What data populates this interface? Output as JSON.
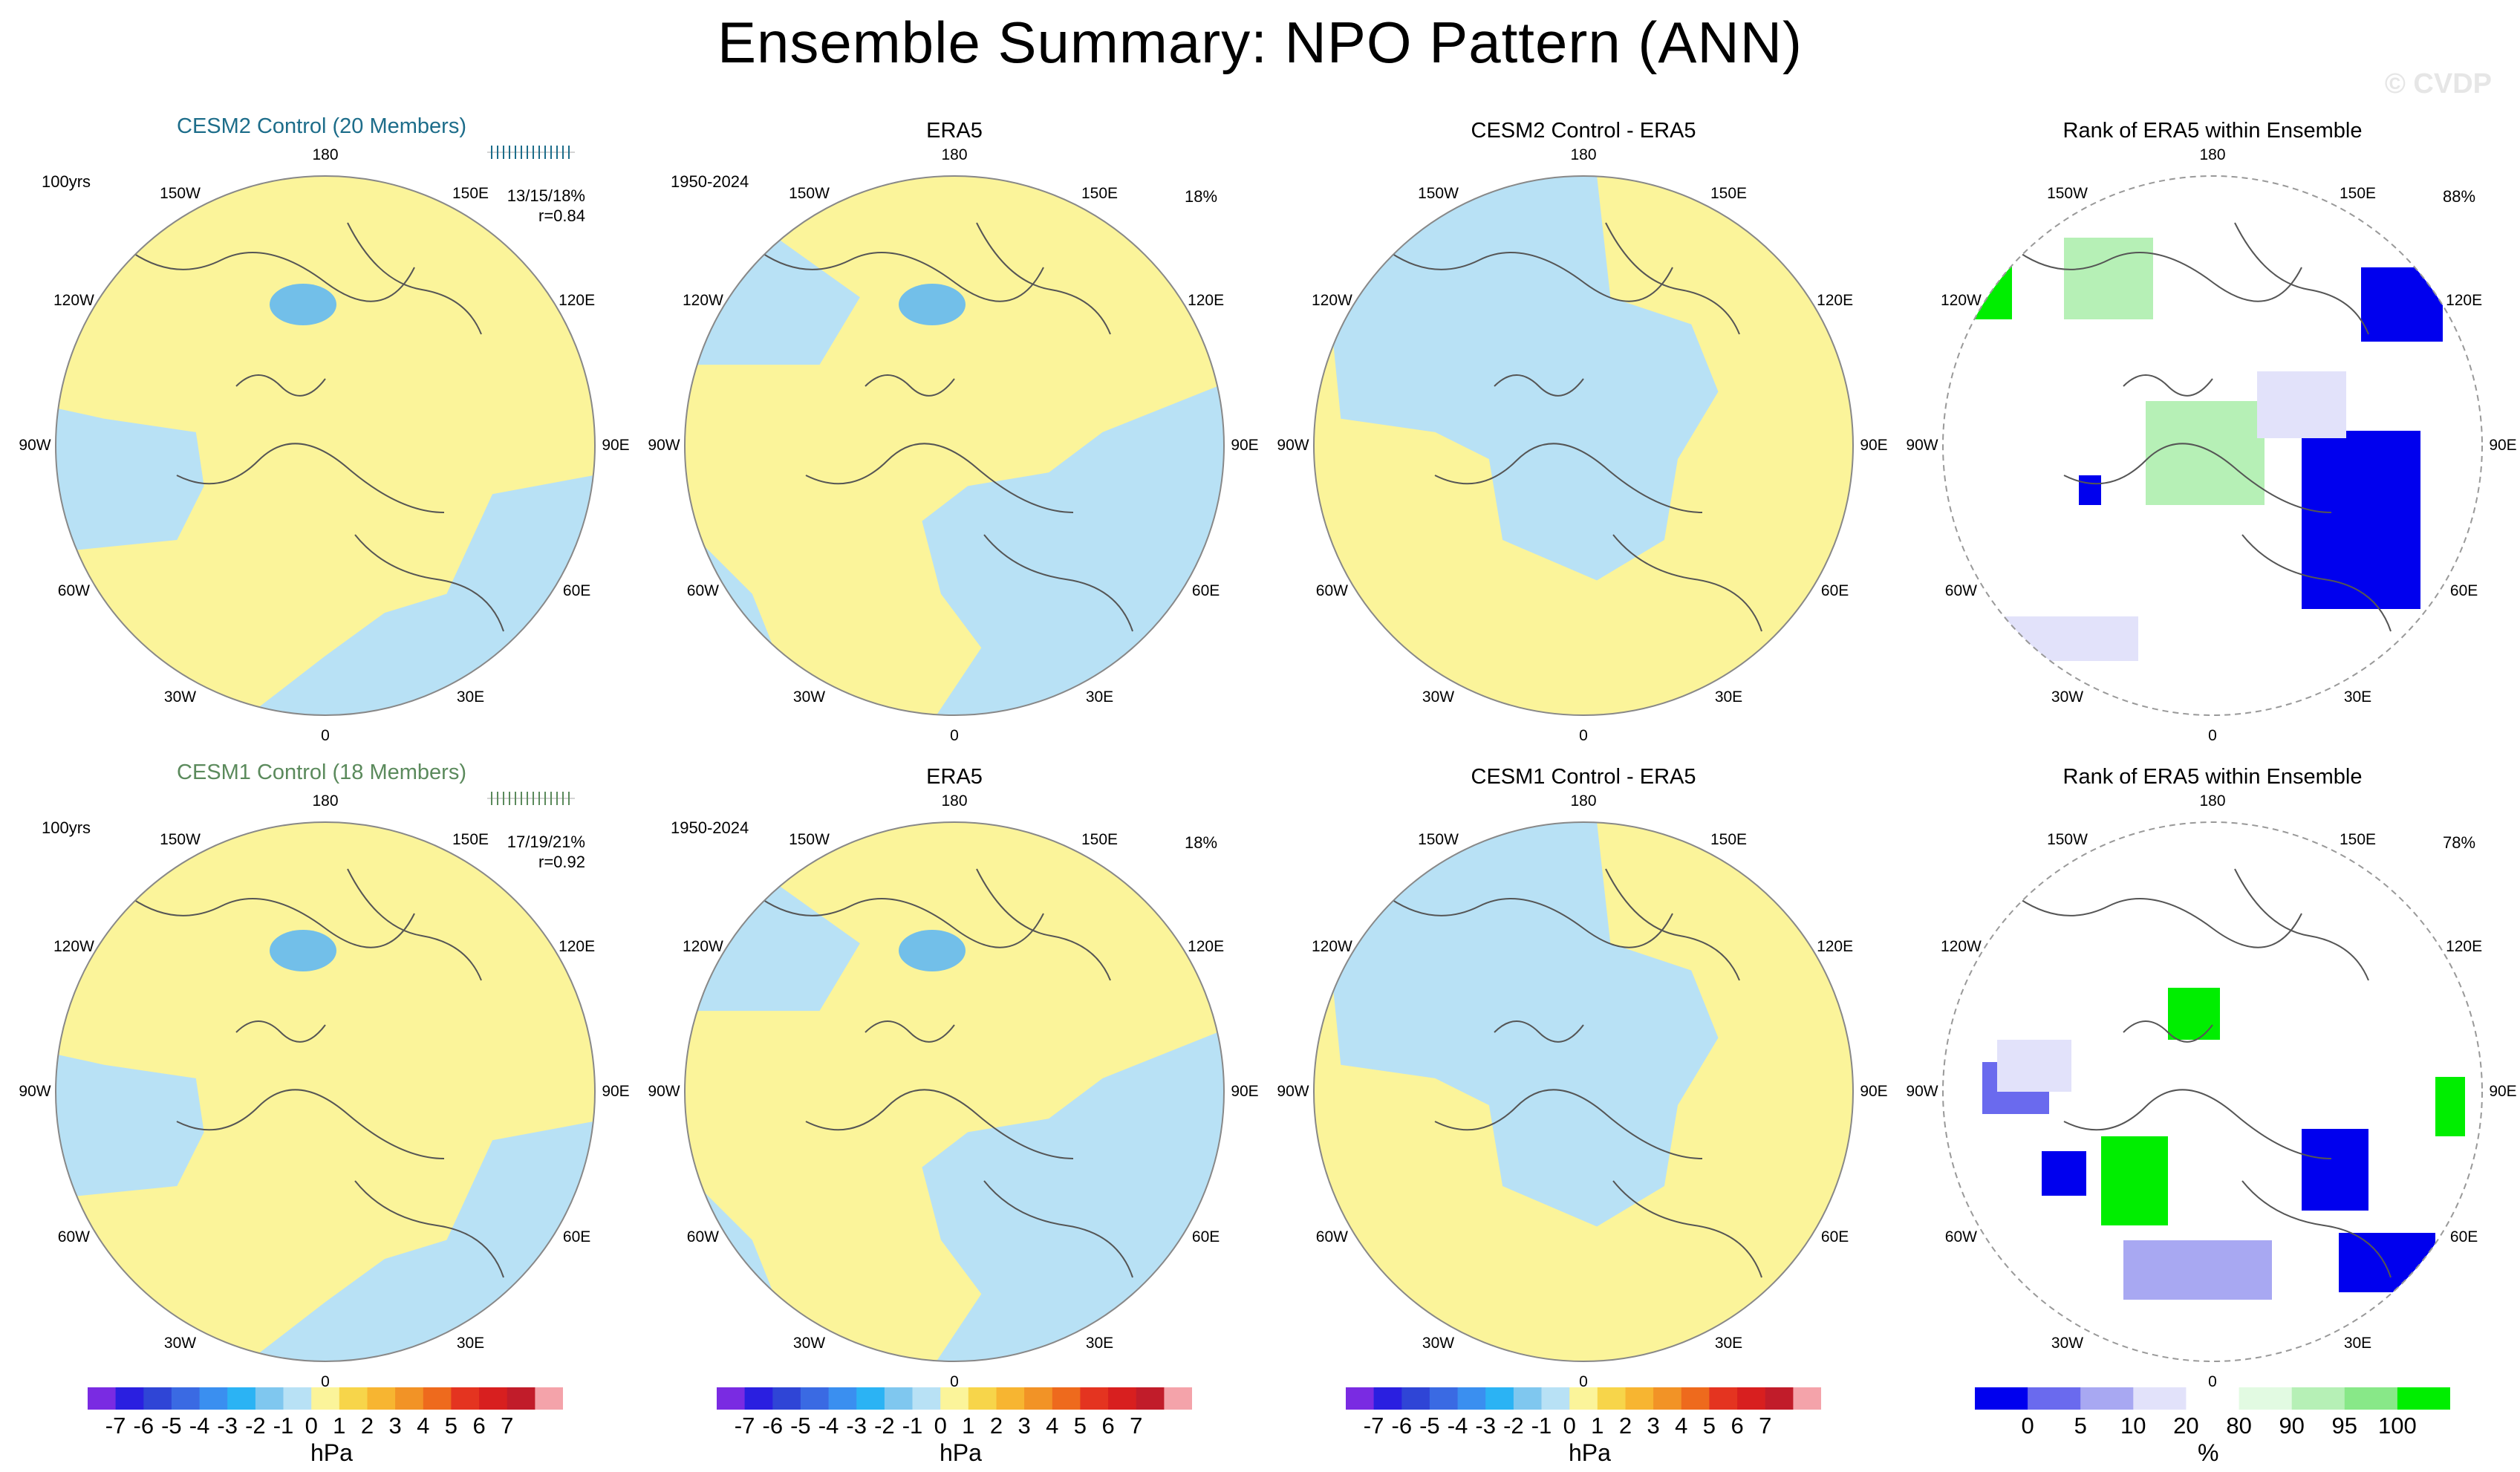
{
  "title": "Ensemble Summary: NPO Pattern (ANN)",
  "watermark": "© CVDP",
  "colors": {
    "positive": "#fbf49a",
    "negative": "#b8e1f5",
    "strong_negative": "#72bfe9",
    "land": "#555555",
    "cesm2_title": "#1d6d8a",
    "cesm1_title": "#5b8a5c"
  },
  "longitude_labels": [
    "180",
    "150E",
    "120E",
    "90E",
    "60E",
    "30E",
    "0",
    "30W",
    "60W",
    "90W",
    "120W",
    "150W"
  ],
  "rows": [
    {
      "panels": [
        {
          "kind": "ensemble",
          "title": "CESM2 Control (20 Members)",
          "left_note": "100yrs",
          "right_note1": "13/15/18%",
          "right_note2": "r=0.84"
        },
        {
          "kind": "obs",
          "title": "ERA5",
          "left_note": "1950-2024",
          "right_note1": "18%"
        },
        {
          "kind": "diff",
          "title": "CESM2 Control - ERA5"
        },
        {
          "kind": "rank",
          "title": "Rank of ERA5 within Ensemble",
          "right_note1": "88%"
        }
      ]
    },
    {
      "panels": [
        {
          "kind": "ensemble",
          "title": "CESM1 Control (18 Members)",
          "left_note": "100yrs",
          "right_note1": "17/19/21%",
          "right_note2": "r=0.92"
        },
        {
          "kind": "obs",
          "title": "ERA5",
          "left_note": "1950-2024",
          "right_note1": "18%"
        },
        {
          "kind": "diff",
          "title": "CESM1 Control - ERA5"
        },
        {
          "kind": "rank",
          "title": "Rank of ERA5 within Ensemble",
          "right_note1": "78%"
        }
      ]
    }
  ],
  "hpa_colorbar": {
    "units": "hPa",
    "labels": [
      "-7",
      "-6",
      "-5",
      "-4",
      "-3",
      "-2",
      "-1",
      "0",
      "1",
      "2",
      "3",
      "4",
      "5",
      "6",
      "7"
    ],
    "colors": [
      "#7a2be2",
      "#2a1fe0",
      "#2f45d6",
      "#3a6ae3",
      "#3a8ff0",
      "#2bb3f4",
      "#7fc7ef",
      "#b8e1f5",
      "#fbf49a",
      "#f7d54a",
      "#f7b531",
      "#f29326",
      "#ee6a1d",
      "#e43420",
      "#d81f1f",
      "#c11c2a",
      "#f4a3aa"
    ]
  },
  "rank_colorbar": {
    "units": "%",
    "labels": [
      "0",
      "5",
      "10",
      "20",
      "80",
      "90",
      "95",
      "100"
    ],
    "colors": [
      "#0000ee",
      "#6a6aee",
      "#a8a8f2",
      "#e2e2fa",
      "#ffffff",
      "#e2fae2",
      "#b6f0b6",
      "#88e888",
      "#00ee00"
    ]
  }
}
